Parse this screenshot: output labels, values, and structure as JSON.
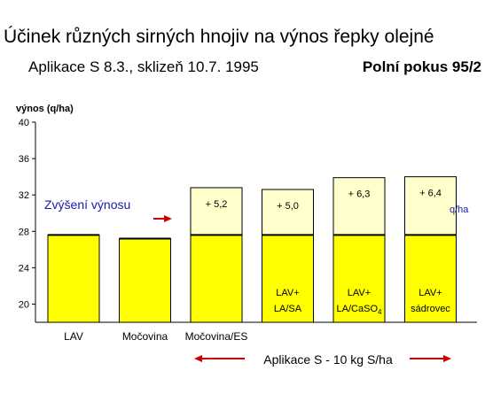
{
  "header": {
    "title": "Účinek různých sirných hnojiv na výnos řepky olejné",
    "subtitle": "Aplikace S  8.3., sklizeň 10.7. 1995",
    "experiment": "Polní pokus 95/2"
  },
  "chart_data": {
    "type": "bar",
    "ylabel": "výnos (q/ha)",
    "ylim": [
      18,
      40
    ],
    "yticks": [
      20,
      24,
      28,
      32,
      36,
      40
    ],
    "categories": [
      "LAV",
      "Močovina",
      "Močovina/ES",
      "LAV+ LA/SA",
      "LAV+ LA/CaSO4",
      "LAV+ sádrovec"
    ],
    "x_labels": [
      "LAV",
      "Močovina",
      "Močovina/ES",
      "",
      "",
      ""
    ],
    "series": [
      {
        "values": [
          27.6,
          27.2,
          27.6,
          27.6,
          27.6,
          27.6
        ]
      },
      {
        "values": [
          0,
          0,
          5.2,
          5.0,
          6.3,
          6.4
        ]
      }
    ],
    "increase_labels": [
      "",
      "",
      "+ 5,2",
      "+ 5,0",
      "+ 6,3",
      "+ 6,4"
    ],
    "bar_text_line1": [
      "",
      "",
      "",
      "LAV+",
      "LAV+",
      "LAV+"
    ],
    "bar_text_line2": [
      "",
      "",
      "",
      "LA/SA",
      "LA/CaSO",
      "sádrovec"
    ],
    "bar_text_sub": [
      "",
      "",
      "",
      "",
      "4",
      ""
    ],
    "unit_label": "q/ha",
    "annotation": "Zvýšení výnosu",
    "bottom_annotation": "Aplikace S - 10 kg S/ha",
    "colors": {
      "base": "#ffff00",
      "increase": "#ffffcc",
      "arrow": "#cc0000",
      "annotation": "#1a1aa6"
    }
  }
}
